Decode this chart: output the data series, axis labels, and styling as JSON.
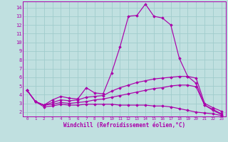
{
  "background_color": "#c0e0e0",
  "grid_color": "#a0cccc",
  "line_color": "#aa00aa",
  "axis_bar_color": "#6600aa",
  "xlabel": "Windchill (Refroidissement éolien,°C)",
  "xlim": [
    -0.5,
    23.5
  ],
  "ylim": [
    1.5,
    14.7
  ],
  "xticks": [
    0,
    1,
    2,
    3,
    4,
    5,
    6,
    7,
    8,
    9,
    10,
    11,
    12,
    13,
    14,
    15,
    16,
    17,
    18,
    19,
    20,
    21,
    22,
    23
  ],
  "yticks": [
    2,
    3,
    4,
    5,
    6,
    7,
    8,
    9,
    10,
    11,
    12,
    13,
    14
  ],
  "lines": [
    {
      "x": [
        0,
        1,
        2,
        3,
        4,
        5,
        6,
        7,
        8,
        9,
        10,
        11,
        12,
        13,
        14,
        15,
        16,
        17,
        18,
        19,
        20,
        21,
        22,
        23
      ],
      "y": [
        4.5,
        3.2,
        2.8,
        3.4,
        3.8,
        3.6,
        3.5,
        4.8,
        4.2,
        4.1,
        6.5,
        9.5,
        13.0,
        13.1,
        14.4,
        13.0,
        12.8,
        12.0,
        8.2,
        6.1,
        5.3,
        2.8,
        2.2,
        1.7
      ]
    },
    {
      "x": [
        0,
        1,
        2,
        3,
        4,
        5,
        6,
        7,
        8,
        9,
        10,
        11,
        12,
        13,
        14,
        15,
        16,
        17,
        18,
        19,
        20,
        21,
        22,
        23
      ],
      "y": [
        4.5,
        3.2,
        2.8,
        3.1,
        3.4,
        3.3,
        3.4,
        3.7,
        3.8,
        3.9,
        4.4,
        4.8,
        5.1,
        5.4,
        5.6,
        5.8,
        5.9,
        6.0,
        6.1,
        6.1,
        5.9,
        3.0,
        2.5,
        2.1
      ]
    },
    {
      "x": [
        0,
        1,
        2,
        3,
        4,
        5,
        6,
        7,
        8,
        9,
        10,
        11,
        12,
        13,
        14,
        15,
        16,
        17,
        18,
        19,
        20,
        21,
        22,
        23
      ],
      "y": [
        4.5,
        3.2,
        2.8,
        2.9,
        3.1,
        3.0,
        3.1,
        3.2,
        3.4,
        3.5,
        3.7,
        3.9,
        4.1,
        4.3,
        4.5,
        4.7,
        4.8,
        5.0,
        5.1,
        5.1,
        4.9,
        2.8,
        2.3,
        1.8
      ]
    },
    {
      "x": [
        0,
        1,
        2,
        3,
        4,
        5,
        6,
        7,
        8,
        9,
        10,
        11,
        12,
        13,
        14,
        15,
        16,
        17,
        18,
        19,
        20,
        21,
        22,
        23
      ],
      "y": [
        4.5,
        3.2,
        2.6,
        2.7,
        2.9,
        2.8,
        2.8,
        2.9,
        2.9,
        2.9,
        2.9,
        2.8,
        2.8,
        2.8,
        2.8,
        2.7,
        2.7,
        2.6,
        2.4,
        2.2,
        2.0,
        1.9,
        1.8,
        1.6
      ]
    }
  ]
}
